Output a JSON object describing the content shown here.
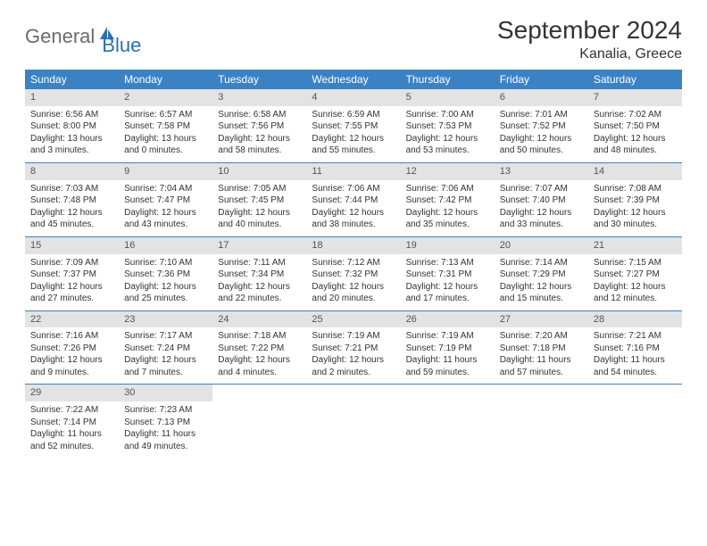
{
  "brand": {
    "text_general": "General",
    "text_blue": "Blue",
    "logo_color": "#2a6fb5"
  },
  "header": {
    "month_title": "September 2024",
    "location": "Kanalia, Greece"
  },
  "colors": {
    "header_bar": "#3b82c4",
    "daynum_bg": "#e3e3e3",
    "row_border": "#3b82c4",
    "text": "#333333"
  },
  "weekdays": [
    "Sunday",
    "Monday",
    "Tuesday",
    "Wednesday",
    "Thursday",
    "Friday",
    "Saturday"
  ],
  "weeks": [
    [
      {
        "n": "1",
        "sr": "Sunrise: 6:56 AM",
        "ss": "Sunset: 8:00 PM",
        "dl": "Daylight: 13 hours and 3 minutes."
      },
      {
        "n": "2",
        "sr": "Sunrise: 6:57 AM",
        "ss": "Sunset: 7:58 PM",
        "dl": "Daylight: 13 hours and 0 minutes."
      },
      {
        "n": "3",
        "sr": "Sunrise: 6:58 AM",
        "ss": "Sunset: 7:56 PM",
        "dl": "Daylight: 12 hours and 58 minutes."
      },
      {
        "n": "4",
        "sr": "Sunrise: 6:59 AM",
        "ss": "Sunset: 7:55 PM",
        "dl": "Daylight: 12 hours and 55 minutes."
      },
      {
        "n": "5",
        "sr": "Sunrise: 7:00 AM",
        "ss": "Sunset: 7:53 PM",
        "dl": "Daylight: 12 hours and 53 minutes."
      },
      {
        "n": "6",
        "sr": "Sunrise: 7:01 AM",
        "ss": "Sunset: 7:52 PM",
        "dl": "Daylight: 12 hours and 50 minutes."
      },
      {
        "n": "7",
        "sr": "Sunrise: 7:02 AM",
        "ss": "Sunset: 7:50 PM",
        "dl": "Daylight: 12 hours and 48 minutes."
      }
    ],
    [
      {
        "n": "8",
        "sr": "Sunrise: 7:03 AM",
        "ss": "Sunset: 7:48 PM",
        "dl": "Daylight: 12 hours and 45 minutes."
      },
      {
        "n": "9",
        "sr": "Sunrise: 7:04 AM",
        "ss": "Sunset: 7:47 PM",
        "dl": "Daylight: 12 hours and 43 minutes."
      },
      {
        "n": "10",
        "sr": "Sunrise: 7:05 AM",
        "ss": "Sunset: 7:45 PM",
        "dl": "Daylight: 12 hours and 40 minutes."
      },
      {
        "n": "11",
        "sr": "Sunrise: 7:06 AM",
        "ss": "Sunset: 7:44 PM",
        "dl": "Daylight: 12 hours and 38 minutes."
      },
      {
        "n": "12",
        "sr": "Sunrise: 7:06 AM",
        "ss": "Sunset: 7:42 PM",
        "dl": "Daylight: 12 hours and 35 minutes."
      },
      {
        "n": "13",
        "sr": "Sunrise: 7:07 AM",
        "ss": "Sunset: 7:40 PM",
        "dl": "Daylight: 12 hours and 33 minutes."
      },
      {
        "n": "14",
        "sr": "Sunrise: 7:08 AM",
        "ss": "Sunset: 7:39 PM",
        "dl": "Daylight: 12 hours and 30 minutes."
      }
    ],
    [
      {
        "n": "15",
        "sr": "Sunrise: 7:09 AM",
        "ss": "Sunset: 7:37 PM",
        "dl": "Daylight: 12 hours and 27 minutes."
      },
      {
        "n": "16",
        "sr": "Sunrise: 7:10 AM",
        "ss": "Sunset: 7:36 PM",
        "dl": "Daylight: 12 hours and 25 minutes."
      },
      {
        "n": "17",
        "sr": "Sunrise: 7:11 AM",
        "ss": "Sunset: 7:34 PM",
        "dl": "Daylight: 12 hours and 22 minutes."
      },
      {
        "n": "18",
        "sr": "Sunrise: 7:12 AM",
        "ss": "Sunset: 7:32 PM",
        "dl": "Daylight: 12 hours and 20 minutes."
      },
      {
        "n": "19",
        "sr": "Sunrise: 7:13 AM",
        "ss": "Sunset: 7:31 PM",
        "dl": "Daylight: 12 hours and 17 minutes."
      },
      {
        "n": "20",
        "sr": "Sunrise: 7:14 AM",
        "ss": "Sunset: 7:29 PM",
        "dl": "Daylight: 12 hours and 15 minutes."
      },
      {
        "n": "21",
        "sr": "Sunrise: 7:15 AM",
        "ss": "Sunset: 7:27 PM",
        "dl": "Daylight: 12 hours and 12 minutes."
      }
    ],
    [
      {
        "n": "22",
        "sr": "Sunrise: 7:16 AM",
        "ss": "Sunset: 7:26 PM",
        "dl": "Daylight: 12 hours and 9 minutes."
      },
      {
        "n": "23",
        "sr": "Sunrise: 7:17 AM",
        "ss": "Sunset: 7:24 PM",
        "dl": "Daylight: 12 hours and 7 minutes."
      },
      {
        "n": "24",
        "sr": "Sunrise: 7:18 AM",
        "ss": "Sunset: 7:22 PM",
        "dl": "Daylight: 12 hours and 4 minutes."
      },
      {
        "n": "25",
        "sr": "Sunrise: 7:19 AM",
        "ss": "Sunset: 7:21 PM",
        "dl": "Daylight: 12 hours and 2 minutes."
      },
      {
        "n": "26",
        "sr": "Sunrise: 7:19 AM",
        "ss": "Sunset: 7:19 PM",
        "dl": "Daylight: 11 hours and 59 minutes."
      },
      {
        "n": "27",
        "sr": "Sunrise: 7:20 AM",
        "ss": "Sunset: 7:18 PM",
        "dl": "Daylight: 11 hours and 57 minutes."
      },
      {
        "n": "28",
        "sr": "Sunrise: 7:21 AM",
        "ss": "Sunset: 7:16 PM",
        "dl": "Daylight: 11 hours and 54 minutes."
      }
    ],
    [
      {
        "n": "29",
        "sr": "Sunrise: 7:22 AM",
        "ss": "Sunset: 7:14 PM",
        "dl": "Daylight: 11 hours and 52 minutes."
      },
      {
        "n": "30",
        "sr": "Sunrise: 7:23 AM",
        "ss": "Sunset: 7:13 PM",
        "dl": "Daylight: 11 hours and 49 minutes."
      },
      null,
      null,
      null,
      null,
      null
    ]
  ]
}
